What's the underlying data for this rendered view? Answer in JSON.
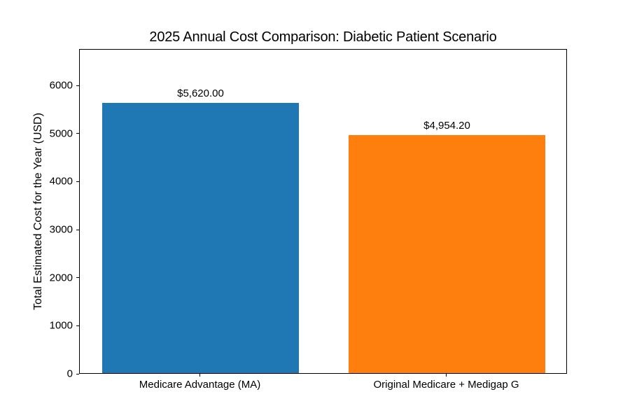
{
  "chart_data": {
    "type": "bar",
    "title": "2025 Annual Cost Comparison: Diabetic Patient Scenario",
    "xlabel": "",
    "ylabel": "Total Estimated Cost for the Year (USD)",
    "categories": [
      "Medicare Advantage (MA)",
      "Original Medicare + Medigap G"
    ],
    "values": [
      5620.0,
      4954.2
    ],
    "bar_labels": [
      "$5,620.00",
      "$4,954.20"
    ],
    "bar_colors": [
      "#1f77b4",
      "#ff7f0e"
    ],
    "yticks": [
      0,
      1000,
      2000,
      3000,
      4000,
      5000,
      6000
    ],
    "ylim": [
      0,
      6760
    ],
    "xlim": [
      -0.49,
      1.49
    ],
    "bar_width": 0.8,
    "grid": false,
    "legend_position": null,
    "background_color": "#ffffff",
    "text_color": "#000000",
    "spine_color": "#000000"
  }
}
